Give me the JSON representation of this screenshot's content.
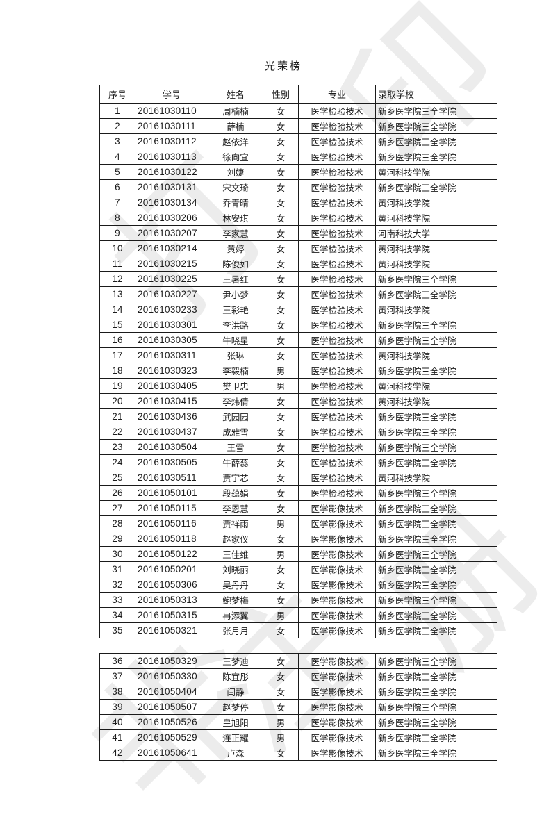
{
  "title": "光荣榜",
  "columns": [
    "序号",
    "学号",
    "姓名",
    "性别",
    "专业",
    "录取学校"
  ],
  "split_after_row": 35,
  "watermark": {
    "color": "#ececec",
    "glyphs": [
      "印",
      "打",
      "册",
      "注",
      "非"
    ]
  },
  "rows": [
    [
      "1",
      "20161030110",
      "周楠楠",
      "女",
      "医学检验技术",
      "新乡医学院三全学院"
    ],
    [
      "2",
      "20161030111",
      "薛楠",
      "女",
      "医学检验技术",
      "新乡医学院三全学院"
    ],
    [
      "3",
      "20161030112",
      "赵依洋",
      "女",
      "医学检验技术",
      "新乡医学院三全学院"
    ],
    [
      "4",
      "20161030113",
      "徐向宜",
      "女",
      "医学检验技术",
      "新乡医学院三全学院"
    ],
    [
      "5",
      "20161030122",
      "刘婕",
      "女",
      "医学检验技术",
      "黄河科技学院"
    ],
    [
      "6",
      "20161030131",
      "宋文琦",
      "女",
      "医学检验技术",
      "新乡医学院三全学院"
    ],
    [
      "7",
      "20161030134",
      "乔青晴",
      "女",
      "医学检验技术",
      "黄河科技学院"
    ],
    [
      "8",
      "20161030206",
      "林安琪",
      "女",
      "医学检验技术",
      "黄河科技学院"
    ],
    [
      "9",
      "20161030207",
      "李家慧",
      "女",
      "医学检验技术",
      "河南科技大学"
    ],
    [
      "10",
      "20161030214",
      "黄婷",
      "女",
      "医学检验技术",
      "黄河科技学院"
    ],
    [
      "11",
      "20161030215",
      "陈俊如",
      "女",
      "医学检验技术",
      "黄河科技学院"
    ],
    [
      "12",
      "20161030225",
      "王暑红",
      "女",
      "医学检验技术",
      "新乡医学院三全学院"
    ],
    [
      "13",
      "20161030227",
      "尹小梦",
      "女",
      "医学检验技术",
      "新乡医学院三全学院"
    ],
    [
      "14",
      "20161030233",
      "王彩艳",
      "女",
      "医学检验技术",
      "黄河科技学院"
    ],
    [
      "15",
      "20161030301",
      "李洪路",
      "女",
      "医学检验技术",
      "新乡医学院三全学院"
    ],
    [
      "16",
      "20161030305",
      "牛晓星",
      "女",
      "医学检验技术",
      "新乡医学院三全学院"
    ],
    [
      "17",
      "20161030311",
      "张琳",
      "女",
      "医学检验技术",
      "黄河科技学院"
    ],
    [
      "18",
      "20161030323",
      "李毅楠",
      "男",
      "医学检验技术",
      "新乡医学院三全学院"
    ],
    [
      "19",
      "20161030405",
      "樊卫忠",
      "男",
      "医学检验技术",
      "黄河科技学院"
    ],
    [
      "20",
      "20161030415",
      "李炜倩",
      "女",
      "医学检验技术",
      "黄河科技学院"
    ],
    [
      "21",
      "20161030436",
      "武园园",
      "女",
      "医学检验技术",
      "新乡医学院三全学院"
    ],
    [
      "22",
      "20161030437",
      "成雅雪",
      "女",
      "医学检验技术",
      "新乡医学院三全学院"
    ],
    [
      "23",
      "20161030504",
      "王雪",
      "女",
      "医学检验技术",
      "新乡医学院三全学院"
    ],
    [
      "24",
      "20161030505",
      "牛薛蕊",
      "女",
      "医学检验技术",
      "新乡医学院三全学院"
    ],
    [
      "25",
      "20161030511",
      "贾宇芯",
      "女",
      "医学检验技术",
      "黄河科技学院"
    ],
    [
      "26",
      "20161050101",
      "段蕴娟",
      "女",
      "医学检验技术",
      "新乡医学院三全学院"
    ],
    [
      "27",
      "20161050115",
      "李恩慧",
      "女",
      "医学影像技术",
      "新乡医学院三全学院"
    ],
    [
      "28",
      "20161050116",
      "贾祥雨",
      "男",
      "医学影像技术",
      "新乡医学院三全学院"
    ],
    [
      "29",
      "20161050118",
      "赵家仪",
      "女",
      "医学影像技术",
      "新乡医学院三全学院"
    ],
    [
      "30",
      "20161050122",
      "王佳维",
      "男",
      "医学影像技术",
      "新乡医学院三全学院"
    ],
    [
      "31",
      "20161050201",
      "刘晓丽",
      "女",
      "医学影像技术",
      "新乡医学院三全学院"
    ],
    [
      "32",
      "20161050306",
      "吴丹丹",
      "女",
      "医学影像技术",
      "新乡医学院三全学院"
    ],
    [
      "33",
      "20161050313",
      "鲍梦梅",
      "女",
      "医学影像技术",
      "新乡医学院三全学院"
    ],
    [
      "34",
      "20161050315",
      "冉添翼",
      "男",
      "医学影像技术",
      "新乡医学院三全学院"
    ],
    [
      "35",
      "20161050321",
      "张月月",
      "女",
      "医学影像技术",
      "新乡医学院三全学院"
    ],
    [
      "36",
      "20161050329",
      "王梦迪",
      "女",
      "医学影像技术",
      "新乡医学院三全学院"
    ],
    [
      "37",
      "20161050330",
      "陈宜彤",
      "女",
      "医学影像技术",
      "新乡医学院三全学院"
    ],
    [
      "38",
      "20161050404",
      "闫静",
      "女",
      "医学影像技术",
      "新乡医学院三全学院"
    ],
    [
      "39",
      "20161050507",
      "赵梦停",
      "女",
      "医学影像技术",
      "新乡医学院三全学院"
    ],
    [
      "40",
      "20161050526",
      "皇旭阳",
      "男",
      "医学影像技术",
      "新乡医学院三全学院"
    ],
    [
      "41",
      "20161050529",
      "连正耀",
      "男",
      "医学影像技术",
      "新乡医学院三全学院"
    ],
    [
      "42",
      "20161050641",
      "卢森",
      "女",
      "医学影像技术",
      "新乡医学院三全学院"
    ]
  ]
}
